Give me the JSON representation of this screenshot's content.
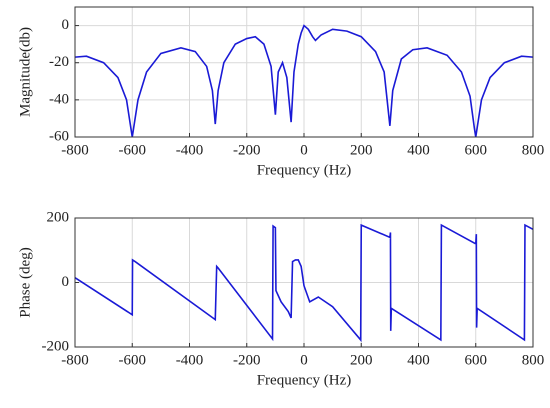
{
  "chart_data": [
    {
      "type": "line",
      "xlabel": "Frequency (Hz)",
      "ylabel": "Magnitude(db)",
      "color": "#1a1ad6",
      "grid": true,
      "xlim": [
        -800,
        800
      ],
      "xticks": [
        -800,
        -600,
        -400,
        -200,
        0,
        200,
        400,
        600,
        800
      ],
      "ylim": [
        -60,
        10
      ],
      "yticks": [
        -60,
        -40,
        -20,
        0
      ],
      "x": [
        -800,
        -760,
        -700,
        -650,
        -620,
        -605,
        -600,
        -595,
        -580,
        -550,
        -500,
        -430,
        -380,
        -340,
        -320,
        -310,
        -300,
        -280,
        -240,
        -200,
        -170,
        -140,
        -115,
        -100,
        -90,
        -75,
        -60,
        -45,
        -35,
        -20,
        -10,
        0,
        15,
        30,
        40,
        60,
        100,
        150,
        200,
        250,
        280,
        300,
        310,
        340,
        380,
        430,
        500,
        550,
        580,
        595,
        600,
        605,
        620,
        650,
        700,
        760,
        800
      ],
      "values": [
        -17,
        -16.5,
        -20,
        -28,
        -40,
        -55,
        -60,
        -55,
        -40,
        -25,
        -15,
        -12,
        -14,
        -22,
        -35,
        -53,
        -35,
        -20,
        -10,
        -7,
        -6,
        -10,
        -22,
        -48,
        -25,
        -20,
        -28,
        -52,
        -25,
        -10,
        -4,
        0,
        -2,
        -6,
        -8,
        -5,
        -2,
        -3,
        -6,
        -14,
        -25,
        -54,
        -35,
        -18,
        -13,
        -12,
        -16,
        -25,
        -38,
        -55,
        -60,
        -55,
        -40,
        -28,
        -20,
        -16.5,
        -17
      ]
    },
    {
      "type": "line",
      "xlabel": "Frequency (Hz)",
      "ylabel": "Phase (deg)",
      "color": "#1a1ad6",
      "grid": true,
      "xlim": [
        -800,
        800
      ],
      "xticks": [
        -800,
        -600,
        -400,
        -200,
        0,
        200,
        400,
        600,
        800
      ],
      "ylim": [
        -200,
        200
      ],
      "yticks": [
        -200,
        0,
        200
      ],
      "x": [
        -800,
        -600,
        -599,
        -590,
        -310,
        -305,
        -300,
        -110,
        -108,
        -100,
        -98,
        -80,
        -55,
        -45,
        -40,
        -30,
        -20,
        -10,
        0,
        20,
        50,
        100,
        198,
        200,
        300,
        302,
        303,
        305,
        478,
        480,
        600,
        602,
        603,
        605,
        770,
        772,
        800
      ],
      "values": [
        15,
        -100,
        70,
        65,
        -115,
        50,
        45,
        -175,
        175,
        170,
        -25,
        -60,
        -90,
        -110,
        65,
        70,
        70,
        50,
        -10,
        -60,
        -45,
        -75,
        -178,
        178,
        140,
        155,
        -150,
        -80,
        -178,
        178,
        120,
        150,
        -140,
        -80,
        -178,
        178,
        165
      ]
    }
  ]
}
